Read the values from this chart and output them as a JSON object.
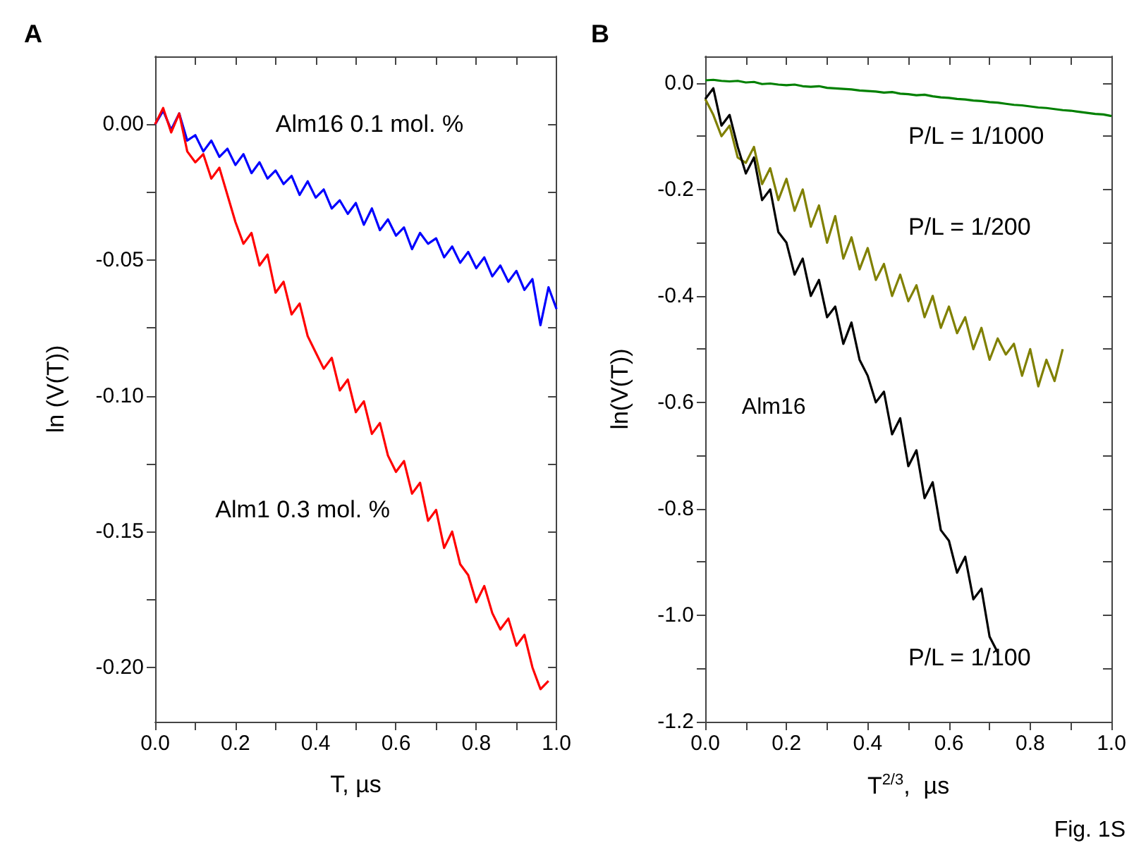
{
  "chart_data": [
    {
      "type": "line",
      "title": "A",
      "xlabel": "T, µs",
      "ylabel": "ln (V(T))",
      "xlim": [
        0,
        1
      ],
      "ylim": [
        -0.22,
        0.025
      ],
      "xticks": [
        {
          "value": 0,
          "label": "0.0"
        },
        {
          "value": 0.1,
          "label": null
        },
        {
          "value": 0.2,
          "label": "0.2"
        },
        {
          "value": 0.3,
          "label": null
        },
        {
          "value": 0.4,
          "label": "0.4"
        },
        {
          "value": 0.5,
          "label": null
        },
        {
          "value": 0.6,
          "label": "0.6"
        },
        {
          "value": 0.7,
          "label": null
        },
        {
          "value": 0.8,
          "label": "0.8"
        },
        {
          "value": 0.9,
          "label": null
        },
        {
          "value": 1,
          "label": "1.0"
        }
      ],
      "yticks": [
        {
          "value": -0.2,
          "label": "-0.20"
        },
        {
          "value": -0.175,
          "label": null
        },
        {
          "value": -0.15,
          "label": "-0.15"
        },
        {
          "value": -0.125,
          "label": null
        },
        {
          "value": -0.1,
          "label": "-0.10"
        },
        {
          "value": -0.075,
          "label": null
        },
        {
          "value": -0.05,
          "label": "-0.05"
        },
        {
          "value": -0.025,
          "label": null
        },
        {
          "value": 0,
          "label": "0.00"
        }
      ],
      "series": [
        {
          "name": "Alm16 0.1 mol. %",
          "color": "#0000ff",
          "x": [
            0,
            0.02,
            0.04,
            0.06,
            0.08,
            0.1,
            0.12,
            0.14,
            0.16,
            0.18,
            0.2,
            0.22,
            0.24,
            0.26,
            0.28,
            0.3,
            0.32,
            0.34,
            0.36,
            0.38,
            0.4,
            0.42,
            0.44,
            0.46,
            0.48,
            0.5,
            0.52,
            0.54,
            0.56,
            0.58,
            0.6,
            0.62,
            0.64,
            0.66,
            0.68,
            0.7,
            0.72,
            0.74,
            0.76,
            0.78,
            0.8,
            0.82,
            0.84,
            0.86,
            0.88,
            0.9,
            0.92,
            0.94,
            0.96,
            0.98,
            1
          ],
          "values": [
            0,
            0.005,
            -0.002,
            0.004,
            -0.006,
            -0.004,
            -0.01,
            -0.006,
            -0.012,
            -0.009,
            -0.015,
            -0.011,
            -0.018,
            -0.014,
            -0.02,
            -0.017,
            -0.022,
            -0.019,
            -0.026,
            -0.021,
            -0.027,
            -0.024,
            -0.031,
            -0.028,
            -0.033,
            -0.029,
            -0.037,
            -0.031,
            -0.039,
            -0.035,
            -0.041,
            -0.038,
            -0.046,
            -0.04,
            -0.044,
            -0.042,
            -0.049,
            -0.045,
            -0.051,
            -0.047,
            -0.053,
            -0.049,
            -0.056,
            -0.052,
            -0.058,
            -0.054,
            -0.061,
            -0.057,
            -0.074,
            -0.06,
            -0.068
          ]
        },
        {
          "name": "Alm1 0.3 mol. %",
          "color": "#ff0000",
          "x": [
            0,
            0.02,
            0.04,
            0.06,
            0.08,
            0.1,
            0.12,
            0.14,
            0.16,
            0.18,
            0.2,
            0.22,
            0.24,
            0.26,
            0.28,
            0.3,
            0.32,
            0.34,
            0.36,
            0.38,
            0.4,
            0.42,
            0.44,
            0.46,
            0.48,
            0.5,
            0.52,
            0.54,
            0.56,
            0.58,
            0.6,
            0.62,
            0.64,
            0.66,
            0.68,
            0.7,
            0.72,
            0.74,
            0.76,
            0.78,
            0.8,
            0.82,
            0.84,
            0.86,
            0.88,
            0.9,
            0.92,
            0.94,
            0.96,
            0.98
          ],
          "values": [
            0,
            0.006,
            -0.003,
            0.004,
            -0.01,
            -0.014,
            -0.011,
            -0.02,
            -0.016,
            -0.026,
            -0.036,
            -0.044,
            -0.04,
            -0.052,
            -0.048,
            -0.062,
            -0.058,
            -0.07,
            -0.066,
            -0.078,
            -0.084,
            -0.09,
            -0.086,
            -0.098,
            -0.094,
            -0.106,
            -0.102,
            -0.114,
            -0.11,
            -0.122,
            -0.128,
            -0.124,
            -0.136,
            -0.132,
            -0.146,
            -0.142,
            -0.156,
            -0.15,
            -0.162,
            -0.166,
            -0.176,
            -0.17,
            -0.18,
            -0.186,
            -0.182,
            -0.192,
            -0.188,
            -0.2,
            -0.208,
            -0.205
          ]
        }
      ]
    },
    {
      "type": "line",
      "title": "B",
      "xlabel": "T$^{2/3}$,  µs",
      "ylabel": "ln(V(T))",
      "xlim": [
        0,
        1
      ],
      "ylim": [
        -1.2,
        0.05
      ],
      "xticks": [
        {
          "value": 0,
          "label": "0.0"
        },
        {
          "value": 0.1,
          "label": null
        },
        {
          "value": 0.2,
          "label": "0.2"
        },
        {
          "value": 0.3,
          "label": null
        },
        {
          "value": 0.4,
          "label": "0.4"
        },
        {
          "value": 0.5,
          "label": null
        },
        {
          "value": 0.6,
          "label": "0.6"
        },
        {
          "value": 0.7,
          "label": null
        },
        {
          "value": 0.8,
          "label": "0.8"
        },
        {
          "value": 0.9,
          "label": null
        },
        {
          "value": 1,
          "label": "1.0"
        }
      ],
      "yticks": [
        {
          "value": -1.2,
          "label": "-1.2"
        },
        {
          "value": -1.1,
          "label": null
        },
        {
          "value": -1.0,
          "label": "-1.0"
        },
        {
          "value": -0.9,
          "label": null
        },
        {
          "value": -0.8,
          "label": "-0.8"
        },
        {
          "value": -0.7,
          "label": null
        },
        {
          "value": -0.6,
          "label": "-0.6"
        },
        {
          "value": -0.5,
          "label": null
        },
        {
          "value": -0.4,
          "label": "-0.4"
        },
        {
          "value": -0.3,
          "label": null
        },
        {
          "value": -0.2,
          "label": "-0.2"
        },
        {
          "value": -0.1,
          "label": null
        },
        {
          "value": 0,
          "label": "0.0"
        }
      ],
      "annotations": [
        "Alm16",
        "Fig. 1S"
      ],
      "series": [
        {
          "name": "P/L = 1/1000",
          "color": "#008000",
          "x": [
            0,
            0.02,
            0.04,
            0.06,
            0.08,
            0.1,
            0.12,
            0.14,
            0.16,
            0.18,
            0.2,
            0.22,
            0.24,
            0.26,
            0.28,
            0.3,
            0.32,
            0.34,
            0.36,
            0.38,
            0.4,
            0.42,
            0.44,
            0.46,
            0.48,
            0.5,
            0.52,
            0.54,
            0.56,
            0.58,
            0.6,
            0.62,
            0.64,
            0.66,
            0.68,
            0.7,
            0.72,
            0.74,
            0.76,
            0.78,
            0.8,
            0.82,
            0.84,
            0.86,
            0.88,
            0.9,
            0.92,
            0.94,
            0.96,
            0.98,
            1
          ],
          "values": [
            0.005,
            0.006,
            0.004,
            0.003,
            0.004,
            0.001,
            0.002,
            -0.002,
            -0.001,
            -0.003,
            -0.004,
            -0.003,
            -0.006,
            -0.007,
            -0.006,
            -0.009,
            -0.01,
            -0.011,
            -0.012,
            -0.014,
            -0.015,
            -0.016,
            -0.018,
            -0.017,
            -0.02,
            -0.021,
            -0.023,
            -0.022,
            -0.025,
            -0.027,
            -0.028,
            -0.03,
            -0.031,
            -0.033,
            -0.034,
            -0.036,
            -0.037,
            -0.039,
            -0.041,
            -0.042,
            -0.044,
            -0.046,
            -0.047,
            -0.049,
            -0.051,
            -0.052,
            -0.054,
            -0.056,
            -0.058,
            -0.059,
            -0.062
          ]
        },
        {
          "name": "P/L = 1/200",
          "color": "#808000",
          "x": [
            0,
            0.02,
            0.04,
            0.06,
            0.08,
            0.1,
            0.12,
            0.14,
            0.16,
            0.18,
            0.2,
            0.22,
            0.24,
            0.26,
            0.28,
            0.3,
            0.32,
            0.34,
            0.36,
            0.38,
            0.4,
            0.42,
            0.44,
            0.46,
            0.48,
            0.5,
            0.52,
            0.54,
            0.56,
            0.58,
            0.6,
            0.62,
            0.64,
            0.66,
            0.68,
            0.7,
            0.72,
            0.74,
            0.76,
            0.78,
            0.8,
            0.82,
            0.84,
            0.86,
            0.88
          ],
          "values": [
            -0.03,
            -0.06,
            -0.1,
            -0.08,
            -0.14,
            -0.15,
            -0.12,
            -0.19,
            -0.16,
            -0.22,
            -0.18,
            -0.24,
            -0.2,
            -0.27,
            -0.23,
            -0.3,
            -0.25,
            -0.33,
            -0.29,
            -0.35,
            -0.31,
            -0.37,
            -0.34,
            -0.4,
            -0.36,
            -0.41,
            -0.38,
            -0.44,
            -0.4,
            -0.46,
            -0.42,
            -0.47,
            -0.44,
            -0.5,
            -0.46,
            -0.52,
            -0.48,
            -0.51,
            -0.49,
            -0.55,
            -0.5,
            -0.57,
            -0.52,
            -0.56,
            -0.5
          ]
        },
        {
          "name": "P/L = 1/100",
          "color": "#000000",
          "x": [
            0,
            0.02,
            0.04,
            0.06,
            0.08,
            0.1,
            0.12,
            0.14,
            0.16,
            0.18,
            0.2,
            0.22,
            0.24,
            0.26,
            0.28,
            0.3,
            0.32,
            0.34,
            0.36,
            0.38,
            0.4,
            0.42,
            0.44,
            0.46,
            0.48,
            0.5,
            0.52,
            0.54,
            0.56,
            0.58,
            0.6,
            0.62,
            0.64,
            0.66,
            0.68,
            0.7,
            0.72
          ],
          "values": [
            -0.03,
            -0.01,
            -0.08,
            -0.06,
            -0.12,
            -0.17,
            -0.14,
            -0.22,
            -0.2,
            -0.28,
            -0.3,
            -0.36,
            -0.33,
            -0.4,
            -0.37,
            -0.44,
            -0.42,
            -0.49,
            -0.45,
            -0.52,
            -0.55,
            -0.6,
            -0.58,
            -0.66,
            -0.63,
            -0.72,
            -0.69,
            -0.78,
            -0.75,
            -0.84,
            -0.86,
            -0.92,
            -0.89,
            -0.97,
            -0.95,
            -1.04,
            -1.07
          ]
        }
      ]
    }
  ]
}
